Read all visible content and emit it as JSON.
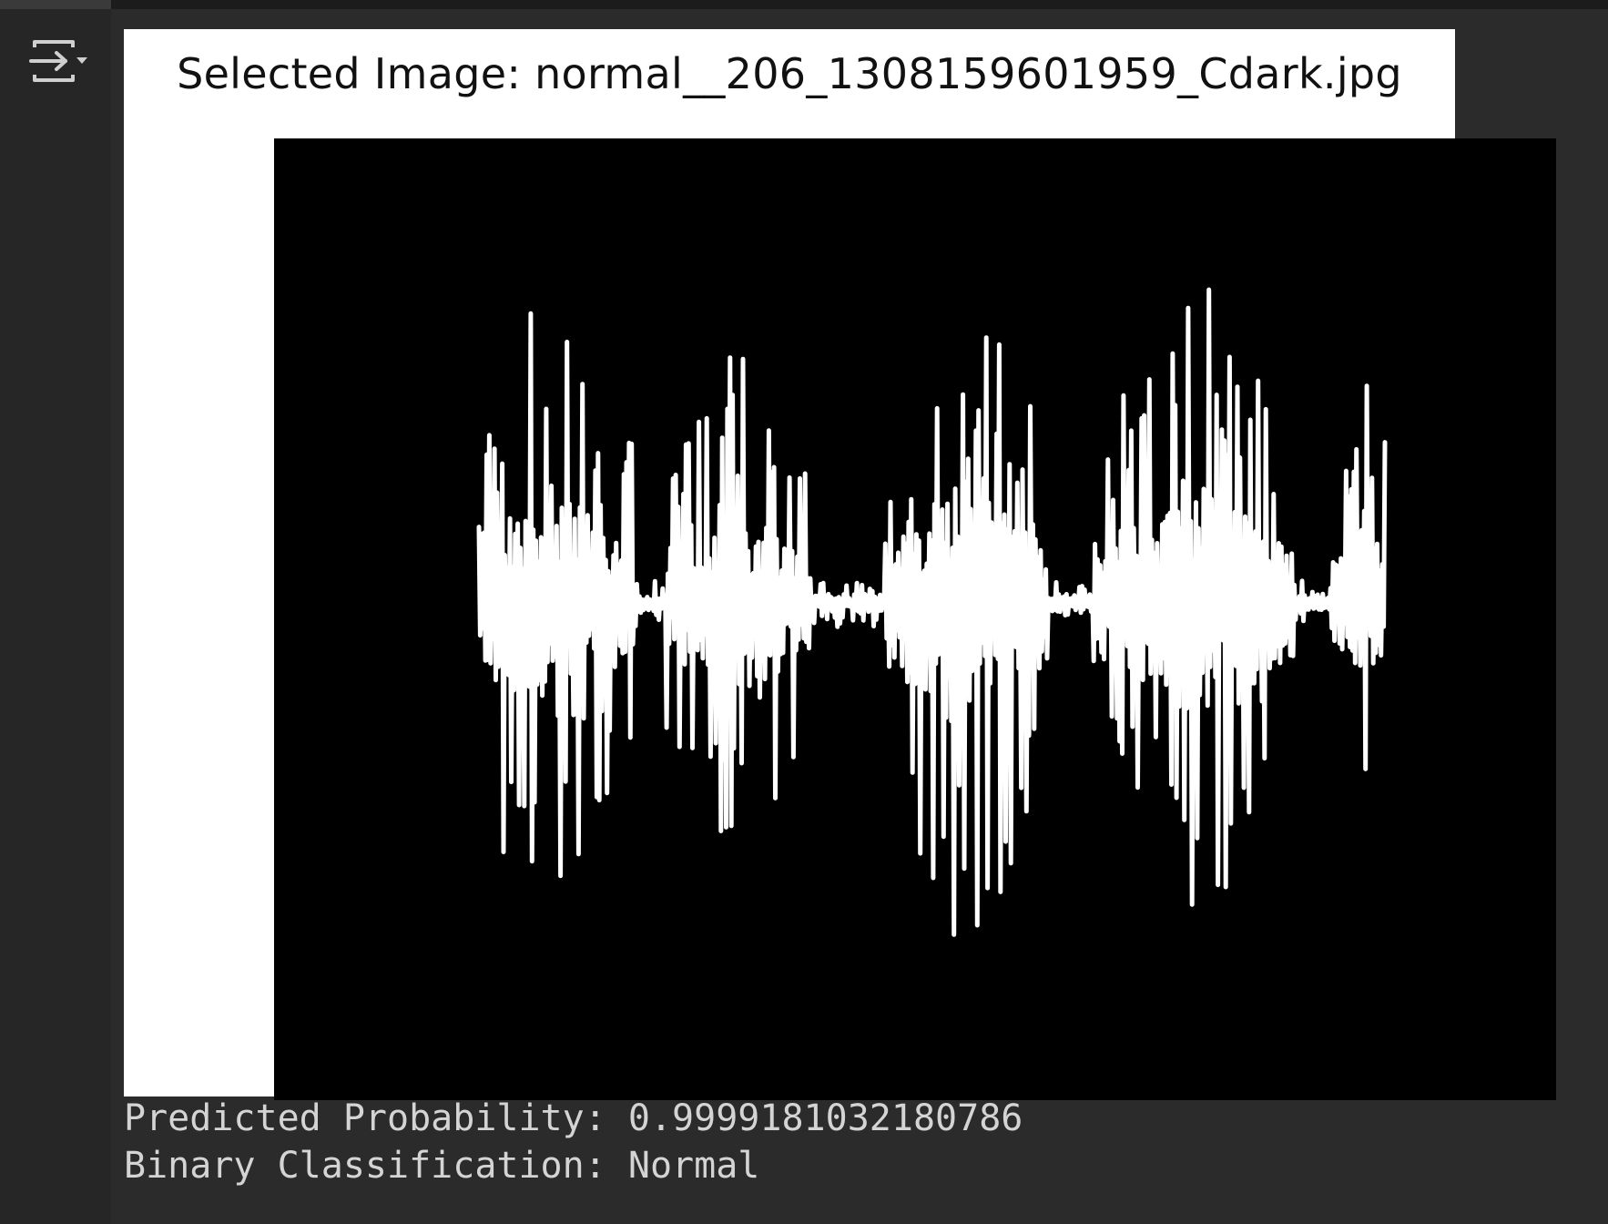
{
  "figure": {
    "title": "Selected Image: normal__206_1308159601959_Cdark.jpg",
    "background_color": "#ffffff",
    "plot_background_color": "#000000",
    "waveform_color": "#ffffff"
  },
  "output": {
    "probability_line": "Predicted Probability: 0.9999181032180786",
    "classification_line": "Binary Classification: Normal"
  },
  "icons": {
    "output_toggle": "output-toggle-icon"
  }
}
